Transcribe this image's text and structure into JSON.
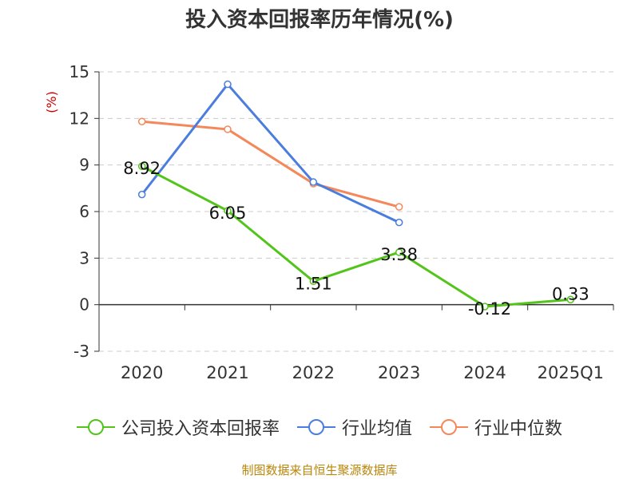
{
  "chart_data": {
    "type": "line",
    "title": "投入资本回报率历年情况(%)",
    "ylabel": "(%)",
    "xlabel": "",
    "categories": [
      "2020",
      "2021",
      "2022",
      "2023",
      "2024",
      "2025Q1"
    ],
    "ylim": [
      -3,
      15
    ],
    "yticks": [
      -3,
      0,
      3,
      6,
      9,
      12,
      15
    ],
    "grid": true,
    "legend_position": "bottom",
    "series": [
      {
        "name": "公司投入资本回报率",
        "color": "#52c41a",
        "values": [
          8.92,
          6.05,
          1.51,
          3.38,
          -0.12,
          0.33
        ],
        "labels": [
          "8.92",
          "6.05",
          "1.51",
          "3.38",
          "-0.12",
          "0.33"
        ]
      },
      {
        "name": "行业均值",
        "color": "#4a7ddd",
        "values": [
          7.1,
          14.2,
          7.9,
          5.3,
          null,
          null
        ]
      },
      {
        "name": "行业中位数",
        "color": "#f4885a",
        "values": [
          11.8,
          11.3,
          7.8,
          6.3,
          null,
          null
        ]
      }
    ]
  },
  "source": "制图数据来自恒生聚源数据库"
}
